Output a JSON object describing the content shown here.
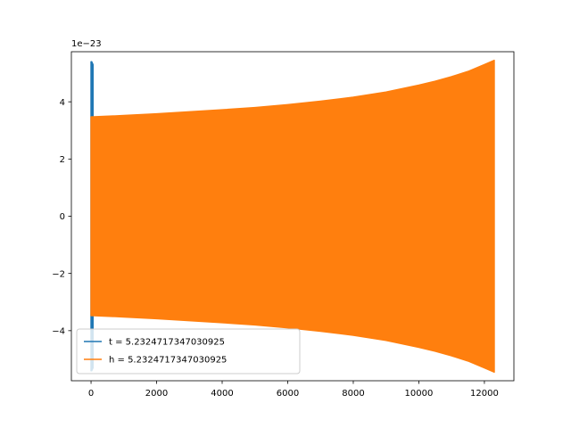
{
  "chart_data": {
    "type": "line",
    "title": "",
    "xlabel": "",
    "ylabel": "",
    "xlim": [
      -600,
      12900
    ],
    "ylim": [
      -5.75,
      5.75
    ],
    "y_offset_label": "1e−23",
    "x_ticks": [
      {
        "value": 0,
        "label": "0"
      },
      {
        "value": 2000,
        "label": "2000"
      },
      {
        "value": 4000,
        "label": "4000"
      },
      {
        "value": 6000,
        "label": "6000"
      },
      {
        "value": 8000,
        "label": "8000"
      },
      {
        "value": 10000,
        "label": "10000"
      },
      {
        "value": 12000,
        "label": "12000"
      }
    ],
    "y_ticks": [
      {
        "value": -4,
        "label": "−4"
      },
      {
        "value": -2,
        "label": "−2"
      },
      {
        "value": 0,
        "label": "0"
      },
      {
        "value": 2,
        "label": "2"
      },
      {
        "value": 4,
        "label": "4"
      }
    ],
    "grid": false,
    "legend_position": "lower-left",
    "series": [
      {
        "name": "t = 5.2324717347030925",
        "color": "#1f77b4",
        "x": [
          0,
          20,
          40,
          60
        ],
        "y_upper": [
          5.4,
          5.4,
          5.35,
          5.3
        ],
        "y_lower": [
          -5.4,
          -5.4,
          -5.35,
          -5.3
        ]
      },
      {
        "name": "h = 5.2324717347030925",
        "color": "#ff7f0e",
        "x": [
          0,
          1000,
          2000,
          3000,
          4000,
          5000,
          6000,
          7000,
          8000,
          9000,
          10000,
          10500,
          11000,
          11500,
          12000,
          12300
        ],
        "y_upper": [
          3.47,
          3.52,
          3.58,
          3.65,
          3.72,
          3.8,
          3.9,
          4.02,
          4.16,
          4.34,
          4.58,
          4.72,
          4.88,
          5.06,
          5.3,
          5.45
        ],
        "y_lower": [
          -3.47,
          -3.52,
          -3.58,
          -3.65,
          -3.72,
          -3.8,
          -3.9,
          -4.02,
          -4.16,
          -4.34,
          -4.58,
          -4.72,
          -4.88,
          -5.06,
          -5.3,
          -5.45
        ]
      }
    ]
  }
}
